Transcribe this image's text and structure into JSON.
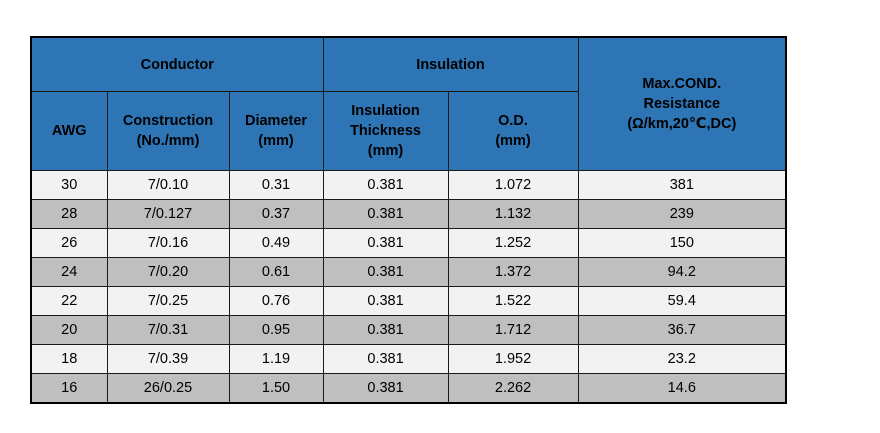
{
  "table": {
    "groups": {
      "conductor": "Conductor",
      "insulation": "Insulation",
      "resistance": "Max.COND.\nResistance\n(Ω/km,20℃,DC)"
    },
    "columns": {
      "awg": "AWG",
      "construction": "Construction\n(No./mm)",
      "diameter": "Diameter\n(mm)",
      "thickness": "Insulation\nThickness\n(mm)",
      "od": "O.D.\n(mm)"
    },
    "rows": [
      [
        "30",
        "7/0.10",
        "0.31",
        "0.381",
        "1.072",
        "381"
      ],
      [
        "28",
        "7/0.127",
        "0.37",
        "0.381",
        "1.132",
        "239"
      ],
      [
        "26",
        "7/0.16",
        "0.49",
        "0.381",
        "1.252",
        "150"
      ],
      [
        "24",
        "7/0.20",
        "0.61",
        "0.381",
        "1.372",
        "94.2"
      ],
      [
        "22",
        "7/0.25",
        "0.76",
        "0.381",
        "1.522",
        "59.4"
      ],
      [
        "20",
        "7/0.31",
        "0.95",
        "0.381",
        "1.712",
        "36.7"
      ],
      [
        "18",
        "7/0.39",
        "1.19",
        "0.381",
        "1.952",
        "23.2"
      ],
      [
        "16",
        "26/0.25",
        "1.50",
        "0.381",
        "2.262",
        "14.6"
      ]
    ]
  }
}
